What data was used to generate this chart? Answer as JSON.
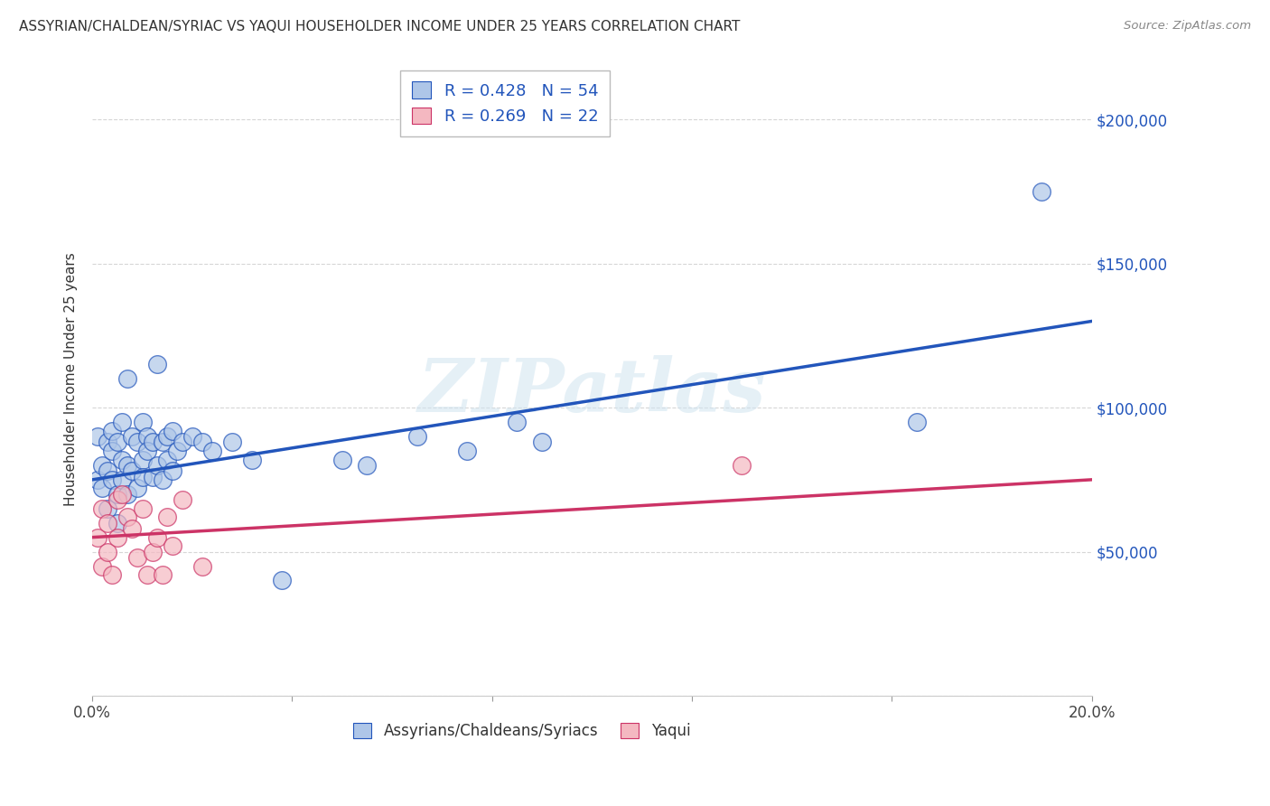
{
  "title": "ASSYRIAN/CHALDEAN/SYRIAC VS YAQUI HOUSEHOLDER INCOME UNDER 25 YEARS CORRELATION CHART",
  "source": "Source: ZipAtlas.com",
  "ylabel": "Householder Income Under 25 years",
  "legend_label1": "Assyrians/Chaldeans/Syriacs",
  "legend_label2": "Yaqui",
  "R1": 0.428,
  "N1": 54,
  "R2": 0.269,
  "N2": 22,
  "blue_color": "#aec6e8",
  "pink_color": "#f4b8c1",
  "line_blue": "#2255bb",
  "line_pink": "#cc3366",
  "blue_x": [
    0.001,
    0.001,
    0.002,
    0.002,
    0.003,
    0.003,
    0.003,
    0.004,
    0.004,
    0.004,
    0.005,
    0.005,
    0.005,
    0.006,
    0.006,
    0.006,
    0.007,
    0.007,
    0.007,
    0.008,
    0.008,
    0.009,
    0.009,
    0.01,
    0.01,
    0.01,
    0.011,
    0.011,
    0.012,
    0.012,
    0.013,
    0.013,
    0.014,
    0.014,
    0.015,
    0.015,
    0.016,
    0.016,
    0.017,
    0.018,
    0.02,
    0.022,
    0.024,
    0.028,
    0.032,
    0.038,
    0.05,
    0.055,
    0.065,
    0.075,
    0.085,
    0.09,
    0.165,
    0.19
  ],
  "blue_y": [
    75000,
    90000,
    80000,
    72000,
    88000,
    78000,
    65000,
    85000,
    92000,
    75000,
    88000,
    70000,
    60000,
    82000,
    95000,
    75000,
    110000,
    80000,
    70000,
    90000,
    78000,
    88000,
    72000,
    95000,
    82000,
    76000,
    90000,
    85000,
    88000,
    76000,
    115000,
    80000,
    88000,
    75000,
    90000,
    82000,
    92000,
    78000,
    85000,
    88000,
    90000,
    88000,
    85000,
    88000,
    82000,
    40000,
    82000,
    80000,
    90000,
    85000,
    95000,
    88000,
    95000,
    175000
  ],
  "pink_x": [
    0.001,
    0.002,
    0.002,
    0.003,
    0.003,
    0.004,
    0.005,
    0.005,
    0.006,
    0.007,
    0.008,
    0.009,
    0.01,
    0.011,
    0.012,
    0.013,
    0.014,
    0.015,
    0.016,
    0.018,
    0.022,
    0.13
  ],
  "pink_y": [
    55000,
    45000,
    65000,
    60000,
    50000,
    42000,
    68000,
    55000,
    70000,
    62000,
    58000,
    48000,
    65000,
    42000,
    50000,
    55000,
    42000,
    62000,
    52000,
    68000,
    45000,
    80000
  ],
  "blue_line_x0": 0.0,
  "blue_line_y0": 75000,
  "blue_line_x1": 0.2,
  "blue_line_y1": 130000,
  "pink_line_x0": 0.0,
  "pink_line_y0": 55000,
  "pink_line_x1": 0.2,
  "pink_line_y1": 75000,
  "ylim": [
    0,
    220000
  ],
  "xlim": [
    0,
    0.2
  ],
  "yticks": [
    0,
    50000,
    100000,
    150000,
    200000
  ],
  "ytick_labels": [
    "",
    "$50,000",
    "$100,000",
    "$150,000",
    "$200,000"
  ],
  "watermark_text": "ZIPatlas",
  "bg_color": "#ffffff",
  "grid_color": "#cccccc"
}
